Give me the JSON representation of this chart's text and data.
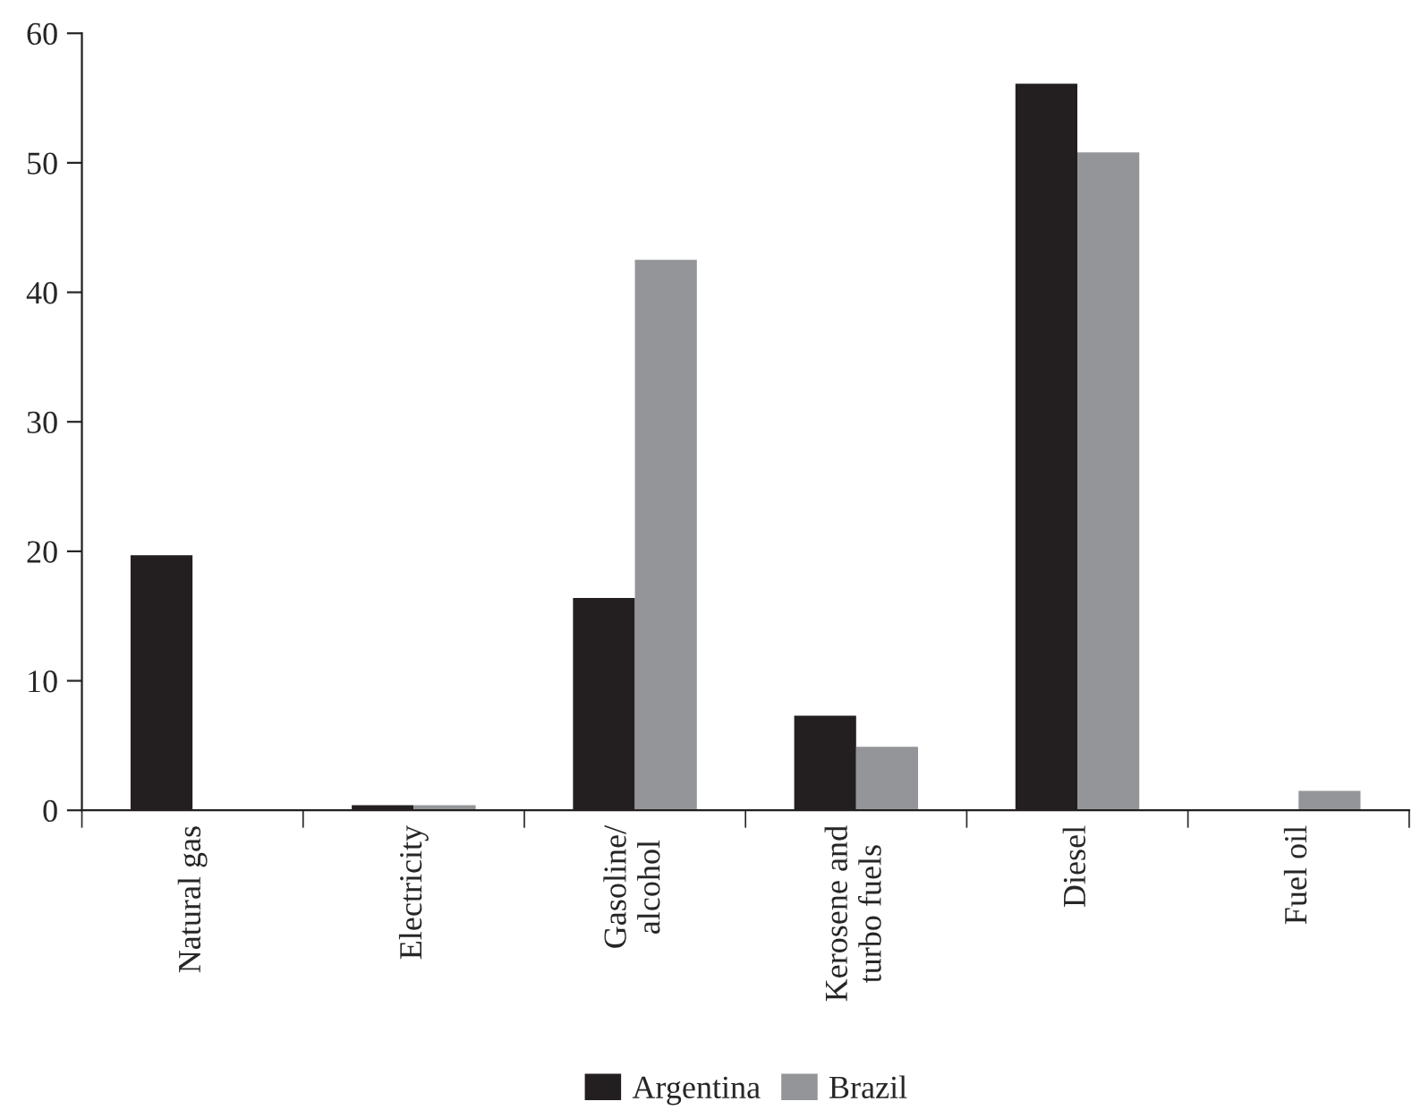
{
  "chart_data": {
    "type": "bar",
    "categories": [
      "Natural gas",
      "Electricity",
      "Gasoline/\nalcohol",
      "Kerosene and\nturbo fuels",
      "Diesel",
      "Fuel oil"
    ],
    "series": [
      {
        "name": "Argentina",
        "color": "#231f20",
        "values": [
          19.7,
          0.4,
          16.4,
          7.3,
          56.1,
          null
        ]
      },
      {
        "name": "Brazil",
        "color": "#939598",
        "values": [
          null,
          0.4,
          42.5,
          4.9,
          50.8,
          1.5
        ]
      }
    ],
    "ylim": [
      0,
      60
    ],
    "yticks": [
      0,
      10,
      20,
      30,
      40,
      50,
      60
    ],
    "grid": false,
    "legend": "bottom"
  }
}
